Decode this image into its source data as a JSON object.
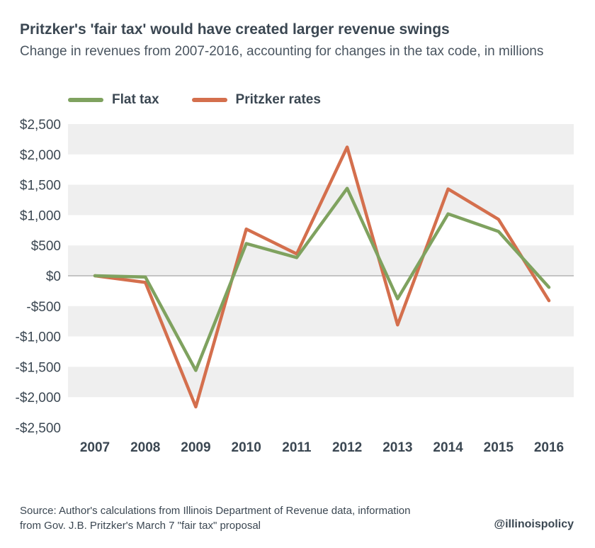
{
  "header": {
    "title": "Pritzker's 'fair tax' would have created larger revenue swings",
    "subtitle": "Change in revenues from 2007-2016, accounting for changes in the tax code, in millions"
  },
  "footer": {
    "source": "Source: Author's calculations from Illinois Department of Revenue data, information from Gov. J.B. Pritzker's March 7 \"fair tax\" proposal",
    "handle": "@illinoispolicy"
  },
  "colors": {
    "flat": "#7fa25f",
    "pritzker": "#d46f4d",
    "band": "#efefef",
    "zero_line": "#b3b3b3",
    "text": "#3b4752"
  },
  "chart_data": {
    "type": "line",
    "title": "Pritzker's 'fair tax' would have created larger revenue swings",
    "subtitle": "Change in revenues from 2007-2016, accounting for changes in the tax code, in millions",
    "x": [
      "2007",
      "2008",
      "2009",
      "2010",
      "2011",
      "2012",
      "2013",
      "2014",
      "2015",
      "2016"
    ],
    "ylim": [
      -2500,
      2500
    ],
    "yticks": [
      2500,
      2000,
      1500,
      1000,
      500,
      0,
      -500,
      -1000,
      -1500,
      -2000,
      -2500
    ],
    "ytick_labels": [
      "$2,500",
      "$2,000",
      "$1,500",
      "$1,000",
      "$500",
      "$0",
      "-$500",
      "-$1,000",
      "-$1,500",
      "-$2,000",
      "-$2,500"
    ],
    "grid": "alternating-bands",
    "legend_position": "top-left",
    "series": [
      {
        "name": "Flat tax",
        "color": "#7fa25f",
        "values": [
          0,
          -20,
          -1560,
          530,
          300,
          1440,
          -380,
          1020,
          730,
          -190
        ]
      },
      {
        "name": "Pritzker rates",
        "color": "#d46f4d",
        "values": [
          0,
          -110,
          -2160,
          770,
          360,
          2120,
          -810,
          1430,
          930,
          -410
        ]
      }
    ]
  }
}
